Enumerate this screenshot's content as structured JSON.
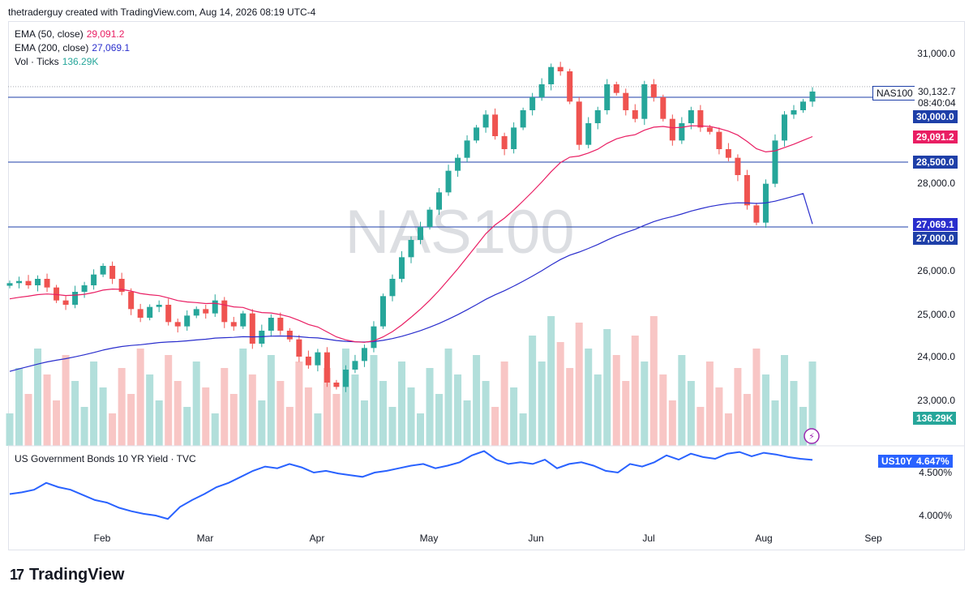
{
  "header": {
    "credit": "thetraderguy created with TradingView.com, Aug 14, 2026 08:19 UTC-4"
  },
  "legend": {
    "ema50_label": "EMA (50, close)",
    "ema50_value": "29,091.2",
    "ema200_label": "EMA (200, close)",
    "ema200_value": "27,069.1",
    "vol_label": "Vol · Ticks",
    "vol_value": "136.29K"
  },
  "watermark": "NAS100",
  "symbol_tag": "NAS100",
  "last_price": "30,132.7",
  "countdown": "08:40:04",
  "tags": {
    "level_30000": "30,000.0",
    "ema50": "29,091.2",
    "level_28500": "28,500.0",
    "ema200": "27,069.1",
    "level_27000": "27,000.0",
    "volume": "136.29K",
    "yield_symbol": "US10Y",
    "yield_value": "4.647%"
  },
  "yield_legend": "US Government Bonds 10 YR Yield · TVC",
  "footer": {
    "brand": "TradingView",
    "mark": "17"
  },
  "colors": {
    "up": "#26a69a",
    "down": "#ef5350",
    "ema50": "#e91e63",
    "ema200": "#2a2ecd",
    "hline": "#1e3fa8",
    "yield": "#2962ff"
  },
  "chart_data": [
    {
      "type": "candlestick",
      "symbol": "NAS100",
      "x_tick_labels": [
        "Feb",
        "Mar",
        "Apr",
        "May",
        "Jun",
        "Jul",
        "Aug",
        "Sep"
      ],
      "y_tick_labels": [
        "31,000.0",
        "28,000.0",
        "26,000.0",
        "25,000.0",
        "24,000.0",
        "23,000.0"
      ],
      "ylim": [
        22000,
        31800
      ],
      "horizontal_levels": [
        30000,
        28500,
        27000
      ],
      "close_series": [
        25700,
        25750,
        25650,
        25800,
        25600,
        25300,
        25200,
        25500,
        25650,
        25900,
        26100,
        25800,
        25500,
        25100,
        24900,
        25150,
        25200,
        24800,
        24700,
        24950,
        25100,
        25000,
        25300,
        24800,
        24700,
        25000,
        24300,
        24600,
        24900,
        24600,
        24400,
        24000,
        23800,
        24100,
        23400,
        23300,
        23700,
        23900,
        24200,
        24700,
        25400,
        25800,
        26300,
        26700,
        27000,
        27400,
        27800,
        28300,
        28600,
        29000,
        29300,
        29600,
        29100,
        28800,
        29300,
        29700,
        30000,
        30300,
        30700,
        30600,
        29900,
        28900,
        29400,
        29700,
        30300,
        30100,
        29700,
        29500,
        30300,
        30000,
        29500,
        29000,
        29400,
        29700,
        29300,
        29200,
        28800,
        28600,
        28200,
        27500,
        27100,
        28000,
        29000,
        29600,
        29700,
        29900,
        30132.7
      ],
      "ema50_end": 29091.2,
      "ema200_end": 27069.1,
      "volume_last": "136.29K"
    },
    {
      "type": "line",
      "name": "US Government Bonds 10 YR Yield · TVC",
      "y_tick_labels": [
        "4.500%",
        "4.000%"
      ],
      "last": 4.647,
      "values": [
        4.25,
        4.27,
        4.3,
        4.38,
        4.33,
        4.3,
        4.24,
        4.18,
        4.15,
        4.09,
        4.05,
        4.02,
        4.0,
        3.96,
        4.1,
        4.18,
        4.25,
        4.33,
        4.38,
        4.45,
        4.52,
        4.57,
        4.55,
        4.6,
        4.56,
        4.5,
        4.52,
        4.49,
        4.47,
        4.45,
        4.5,
        4.52,
        4.55,
        4.58,
        4.6,
        4.55,
        4.58,
        4.62,
        4.7,
        4.75,
        4.65,
        4.6,
        4.62,
        4.6,
        4.65,
        4.55,
        4.6,
        4.62,
        4.58,
        4.52,
        4.5,
        4.6,
        4.57,
        4.62,
        4.7,
        4.65,
        4.72,
        4.68,
        4.66,
        4.72,
        4.74,
        4.69,
        4.73,
        4.71,
        4.68,
        4.66,
        4.647
      ]
    }
  ]
}
